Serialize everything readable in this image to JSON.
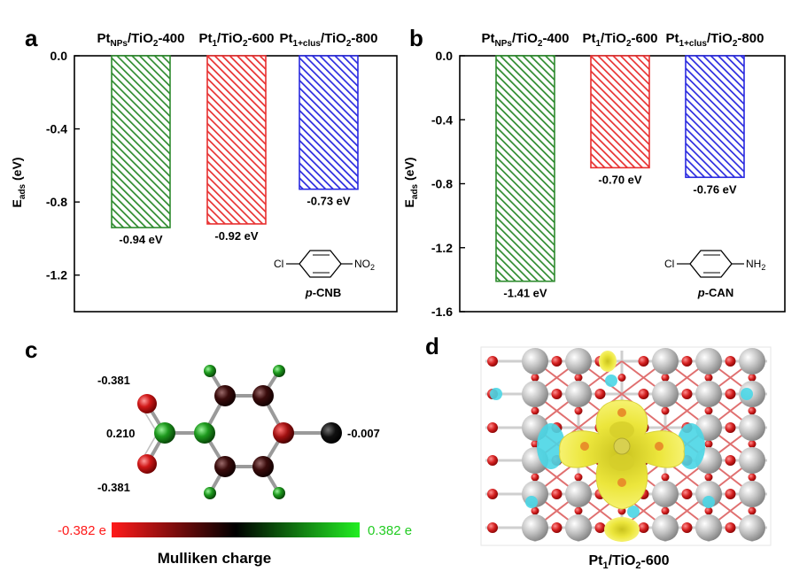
{
  "panels": {
    "a": "a",
    "b": "b",
    "c": "c",
    "d": "d"
  },
  "chart_data": [
    {
      "type": "bar",
      "panel": "a",
      "categories": [
        "Pt_NPs/TiO2-400",
        "Pt1/TiO2-600",
        "Pt1+clus/TiO2-800"
      ],
      "category_parts": [
        {
          "main": "Pt",
          "sub": "NPs",
          "rest1": "/TiO",
          "sub2": "2",
          "rest2": "-400"
        },
        {
          "main": "Pt",
          "sub": "1",
          "rest1": "/TiO",
          "sub2": "2",
          "rest2": "-600"
        },
        {
          "main": "Pt",
          "sub": "1+clus",
          "rest1": "/TiO",
          "sub2": "2",
          "rest2": "-800"
        }
      ],
      "values": [
        -0.94,
        -0.92,
        -0.73
      ],
      "value_labels": [
        "-0.94 eV",
        "-0.92 eV",
        "-0.73 eV"
      ],
      "colors": [
        "#2e8b2e",
        "#e83030",
        "#2a2ae0"
      ],
      "ylabel_main": "E",
      "ylabel_sub": "ads",
      "ylabel_unit": " (eV)",
      "ylim": [
        -1.4,
        0.0
      ],
      "yticks": [
        0.0,
        -0.4,
        -0.8,
        -1.2
      ],
      "ytick_labels": [
        "0.0",
        "-0.4",
        "-0.8",
        "-1.2"
      ],
      "molecule": {
        "left": "Cl",
        "right_main": "NO",
        "right_sub": "2",
        "name_prefix": "p",
        "name_rest": "-CNB"
      }
    },
    {
      "type": "bar",
      "panel": "b",
      "categories": [
        "Pt_NPs/TiO2-400",
        "Pt1/TiO2-600",
        "Pt1+clus/TiO2-800"
      ],
      "category_parts": [
        {
          "main": "Pt",
          "sub": "NPs",
          "rest1": "/TiO",
          "sub2": "2",
          "rest2": "-400"
        },
        {
          "main": "Pt",
          "sub": "1",
          "rest1": "/TiO",
          "sub2": "2",
          "rest2": "-600"
        },
        {
          "main": "Pt",
          "sub": "1+clus",
          "rest1": "/TiO",
          "sub2": "2",
          "rest2": "-800"
        }
      ],
      "values": [
        -1.41,
        -0.7,
        -0.76
      ],
      "value_labels": [
        "-1.41 eV",
        "-0.70 eV",
        "-0.76 eV"
      ],
      "colors": [
        "#2e8b2e",
        "#e83030",
        "#2a2ae0"
      ],
      "ylabel_main": "E",
      "ylabel_sub": "ads",
      "ylabel_unit": " (eV)",
      "ylim": [
        -1.6,
        0.0
      ],
      "yticks": [
        0.0,
        -0.4,
        -0.8,
        -1.2,
        -1.6
      ],
      "ytick_labels": [
        "0.0",
        "-0.4",
        "-0.8",
        "-1.2",
        "-1.6"
      ],
      "molecule": {
        "left": "Cl",
        "right_main": "NH",
        "right_sub": "2",
        "name_prefix": "p",
        "name_rest": "-CAN"
      }
    }
  ],
  "panel_c": {
    "charges": [
      "-0.381",
      "0.210",
      "-0.381",
      "-0.007"
    ],
    "colorbar_min": "-0.382 e",
    "colorbar_max": "0.382 e",
    "colorbar_title": "Mulliken charge",
    "colorbar_colors": [
      "#ff1a1a",
      "#000000",
      "#22ee22"
    ]
  },
  "panel_d": {
    "caption_main": "Pt",
    "caption_sub": "1",
    "caption_rest1": "/TiO",
    "caption_sub2": "2",
    "caption_rest2": "-600",
    "colors": {
      "ti": "#c8c8c8",
      "o": "#d42020",
      "charge_yellow": "#f2ef40",
      "charge_cyan": "#4ad6e6"
    }
  }
}
